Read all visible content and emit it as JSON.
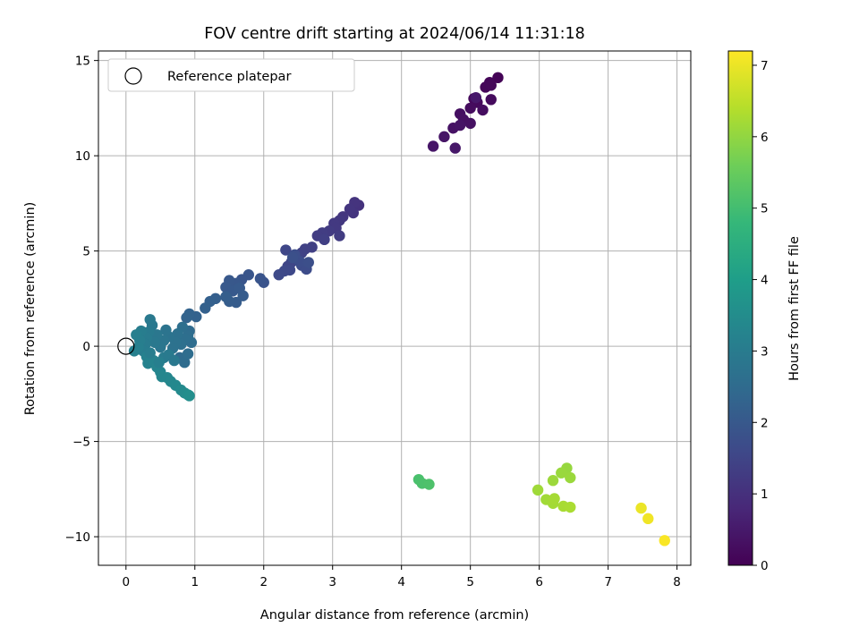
{
  "chart_data": {
    "type": "scatter",
    "title": "FOV centre drift starting at 2024/06/14 11:31:18",
    "xlabel": "Angular distance from reference (arcmin)",
    "ylabel": "Rotation from reference (arcmin)",
    "xlim": [
      -0.4,
      8.2
    ],
    "ylim": [
      -11.5,
      15.5
    ],
    "xticks": [
      0,
      1,
      2,
      3,
      4,
      5,
      6,
      7,
      8
    ],
    "yticks": [
      -10,
      -5,
      0,
      5,
      10,
      15
    ],
    "xtick_labels": [
      "0",
      "1",
      "2",
      "3",
      "4",
      "5",
      "6",
      "7",
      "8"
    ],
    "ytick_labels": [
      "−10",
      "−5",
      "0",
      "5",
      "10",
      "15"
    ],
    "grid": true,
    "legend": {
      "position": "upper-left",
      "entries": [
        "Reference platepar"
      ]
    },
    "reference": {
      "x": 0,
      "y": 0,
      "label": "Reference platepar"
    },
    "colorbar": {
      "label": "Hours from first FF file",
      "colormap": "viridis",
      "range": [
        0,
        7.2
      ],
      "ticks": [
        0,
        1,
        2,
        3,
        4,
        5,
        6,
        7
      ],
      "tick_labels": [
        "0",
        "1",
        "2",
        "3",
        "4",
        "5",
        "6",
        "7"
      ]
    },
    "colors": {
      "viridis": [
        "#440154",
        "#482878",
        "#3e4989",
        "#31688e",
        "#26828e",
        "#1f9e89",
        "#35b779",
        "#6ece58",
        "#b5de2b",
        "#fde725"
      ],
      "grid": "#b0b0b0",
      "frame": "#000000"
    },
    "points": [
      {
        "x": 5.4,
        "y": 14.1,
        "c": 0.05
      },
      {
        "x": 5.28,
        "y": 13.85,
        "c": 0.08
      },
      {
        "x": 5.22,
        "y": 13.6,
        "c": 0.1
      },
      {
        "x": 5.3,
        "y": 13.7,
        "c": 0.12
      },
      {
        "x": 5.05,
        "y": 13.0,
        "c": 0.15
      },
      {
        "x": 5.1,
        "y": 12.8,
        "c": 0.18
      },
      {
        "x": 5.3,
        "y": 12.95,
        "c": 0.2
      },
      {
        "x": 5.0,
        "y": 12.5,
        "c": 0.22
      },
      {
        "x": 5.18,
        "y": 12.4,
        "c": 0.25
      },
      {
        "x": 4.85,
        "y": 12.2,
        "c": 0.28
      },
      {
        "x": 4.9,
        "y": 11.9,
        "c": 0.3
      },
      {
        "x": 5.0,
        "y": 11.7,
        "c": 0.32
      },
      {
        "x": 4.75,
        "y": 11.45,
        "c": 0.35
      },
      {
        "x": 4.85,
        "y": 11.6,
        "c": 0.38
      },
      {
        "x": 4.62,
        "y": 11.0,
        "c": 0.4
      },
      {
        "x": 4.46,
        "y": 10.5,
        "c": 0.42
      },
      {
        "x": 4.78,
        "y": 10.4,
        "c": 0.45
      },
      {
        "x": 5.08,
        "y": 13.05,
        "c": 0.48
      },
      {
        "x": 3.38,
        "y": 7.4,
        "c": 1.05
      },
      {
        "x": 3.32,
        "y": 7.55,
        "c": 1.08
      },
      {
        "x": 3.3,
        "y": 7.0,
        "c": 1.1
      },
      {
        "x": 3.25,
        "y": 7.2,
        "c": 1.12
      },
      {
        "x": 3.15,
        "y": 6.8,
        "c": 1.15
      },
      {
        "x": 3.1,
        "y": 6.6,
        "c": 1.18
      },
      {
        "x": 3.02,
        "y": 6.45,
        "c": 1.2
      },
      {
        "x": 3.05,
        "y": 6.2,
        "c": 1.22
      },
      {
        "x": 2.95,
        "y": 6.05,
        "c": 1.25
      },
      {
        "x": 3.1,
        "y": 5.8,
        "c": 1.28
      },
      {
        "x": 2.85,
        "y": 5.95,
        "c": 1.3
      },
      {
        "x": 2.78,
        "y": 5.8,
        "c": 1.32
      },
      {
        "x": 2.88,
        "y": 5.6,
        "c": 1.35
      },
      {
        "x": 2.7,
        "y": 5.2,
        "c": 1.38
      },
      {
        "x": 2.6,
        "y": 5.1,
        "c": 1.4
      },
      {
        "x": 2.55,
        "y": 4.9,
        "c": 1.42
      },
      {
        "x": 2.5,
        "y": 4.75,
        "c": 1.45
      },
      {
        "x": 2.45,
        "y": 4.6,
        "c": 1.48
      },
      {
        "x": 2.4,
        "y": 4.4,
        "c": 1.5
      },
      {
        "x": 2.35,
        "y": 4.2,
        "c": 1.52
      },
      {
        "x": 2.32,
        "y": 5.05,
        "c": 1.55
      },
      {
        "x": 2.38,
        "y": 4.0,
        "c": 1.58
      },
      {
        "x": 2.3,
        "y": 3.95,
        "c": 1.6
      },
      {
        "x": 2.22,
        "y": 3.75,
        "c": 1.62
      },
      {
        "x": 2.55,
        "y": 4.25,
        "c": 1.65
      },
      {
        "x": 2.62,
        "y": 4.05,
        "c": 1.68
      },
      {
        "x": 2.52,
        "y": 4.45,
        "c": 1.7
      },
      {
        "x": 2.45,
        "y": 4.8,
        "c": 1.72
      },
      {
        "x": 2.65,
        "y": 4.4,
        "c": 1.75
      },
      {
        "x": 2.42,
        "y": 4.65,
        "c": 1.78
      },
      {
        "x": 2.0,
        "y": 3.35,
        "c": 1.85
      },
      {
        "x": 1.95,
        "y": 3.55,
        "c": 1.88
      },
      {
        "x": 1.78,
        "y": 3.75,
        "c": 1.9
      },
      {
        "x": 1.68,
        "y": 3.5,
        "c": 1.92
      },
      {
        "x": 1.6,
        "y": 3.3,
        "c": 1.95
      },
      {
        "x": 1.5,
        "y": 3.45,
        "c": 1.98
      },
      {
        "x": 1.45,
        "y": 3.1,
        "c": 2.0
      },
      {
        "x": 1.55,
        "y": 2.9,
        "c": 2.02
      },
      {
        "x": 1.65,
        "y": 3.05,
        "c": 2.05
      },
      {
        "x": 1.7,
        "y": 2.65,
        "c": 2.08
      },
      {
        "x": 1.6,
        "y": 2.3,
        "c": 2.1
      },
      {
        "x": 1.5,
        "y": 2.35,
        "c": 2.12
      },
      {
        "x": 1.45,
        "y": 2.6,
        "c": 2.15
      },
      {
        "x": 1.3,
        "y": 2.5,
        "c": 2.18
      },
      {
        "x": 1.22,
        "y": 2.35,
        "c": 2.2
      },
      {
        "x": 1.15,
        "y": 2.0,
        "c": 2.22
      },
      {
        "x": 1.02,
        "y": 1.55,
        "c": 2.25
      },
      {
        "x": 0.92,
        "y": 1.7,
        "c": 2.28
      },
      {
        "x": 0.88,
        "y": 1.5,
        "c": 2.3
      },
      {
        "x": 0.92,
        "y": 0.8,
        "c": 2.5
      },
      {
        "x": 0.95,
        "y": 0.2,
        "c": 2.55
      },
      {
        "x": 0.9,
        "y": 0.55,
        "c": 2.58
      },
      {
        "x": 0.82,
        "y": 1.0,
        "c": 2.6
      },
      {
        "x": 0.85,
        "y": 0.4,
        "c": 2.62
      },
      {
        "x": 0.8,
        "y": 0.1,
        "c": 2.65
      },
      {
        "x": 0.75,
        "y": 0.65,
        "c": 2.68
      },
      {
        "x": 0.72,
        "y": 0.2,
        "c": 2.7
      },
      {
        "x": 0.68,
        "y": -0.1,
        "c": 2.72
      },
      {
        "x": 0.62,
        "y": 0.5,
        "c": 2.75
      },
      {
        "x": 0.58,
        "y": 0.85,
        "c": 2.78
      },
      {
        "x": 0.55,
        "y": 0.3,
        "c": 2.8
      },
      {
        "x": 0.5,
        "y": -0.05,
        "c": 2.82
      },
      {
        "x": 0.45,
        "y": 0.6,
        "c": 2.85
      },
      {
        "x": 0.42,
        "y": 0.2,
        "c": 2.88
      },
      {
        "x": 0.38,
        "y": 1.1,
        "c": 2.9
      },
      {
        "x": 0.35,
        "y": 1.4,
        "c": 2.92
      },
      {
        "x": 0.33,
        "y": 0.75,
        "c": 2.95
      },
      {
        "x": 0.3,
        "y": 0.45,
        "c": 2.98
      },
      {
        "x": 0.28,
        "y": 0.1,
        "c": 3.0
      },
      {
        "x": 0.25,
        "y": -0.25,
        "c": 3.02
      },
      {
        "x": 0.22,
        "y": 0.8,
        "c": 3.05
      },
      {
        "x": 0.2,
        "y": 0.3,
        "c": 3.08
      },
      {
        "x": 0.18,
        "y": -0.05,
        "c": 3.1
      },
      {
        "x": 0.15,
        "y": 0.6,
        "c": 3.12
      },
      {
        "x": 0.12,
        "y": -0.25,
        "c": 3.15
      },
      {
        "x": 0.3,
        "y": -0.55,
        "c": 3.18
      },
      {
        "x": 0.32,
        "y": -0.9,
        "c": 3.2
      },
      {
        "x": 0.4,
        "y": -0.75,
        "c": 3.22
      },
      {
        "x": 0.45,
        "y": -1.1,
        "c": 3.25
      },
      {
        "x": 0.5,
        "y": -1.35,
        "c": 3.28
      },
      {
        "x": 0.52,
        "y": -1.6,
        "c": 3.3
      },
      {
        "x": 0.6,
        "y": -1.65,
        "c": 3.32
      },
      {
        "x": 0.65,
        "y": -1.85,
        "c": 3.35
      },
      {
        "x": 0.72,
        "y": -2.05,
        "c": 3.38
      },
      {
        "x": 0.8,
        "y": -2.3,
        "c": 3.42
      },
      {
        "x": 0.85,
        "y": -2.45,
        "c": 3.45
      },
      {
        "x": 0.9,
        "y": -2.55,
        "c": 3.5
      },
      {
        "x": 0.92,
        "y": -2.6,
        "c": 3.55
      },
      {
        "x": 0.78,
        "y": -0.6,
        "c": 2.5
      },
      {
        "x": 0.85,
        "y": -0.85,
        "c": 2.52
      },
      {
        "x": 0.9,
        "y": -0.4,
        "c": 2.55
      },
      {
        "x": 0.55,
        "y": -0.6,
        "c": 3.0
      },
      {
        "x": 0.62,
        "y": -0.45,
        "c": 2.95
      },
      {
        "x": 0.35,
        "y": -0.35,
        "c": 3.05
      },
      {
        "x": 0.48,
        "y": -0.85,
        "c": 3.1
      },
      {
        "x": 0.7,
        "y": -0.75,
        "c": 2.9
      },
      {
        "x": 4.25,
        "y": -7.0,
        "c": 5.1
      },
      {
        "x": 4.3,
        "y": -7.2,
        "c": 5.12
      },
      {
        "x": 4.4,
        "y": -7.25,
        "c": 5.15
      },
      {
        "x": 6.4,
        "y": -6.4,
        "c": 6.05
      },
      {
        "x": 6.32,
        "y": -6.65,
        "c": 6.08
      },
      {
        "x": 6.45,
        "y": -6.9,
        "c": 6.1
      },
      {
        "x": 6.2,
        "y": -7.05,
        "c": 6.12
      },
      {
        "x": 5.98,
        "y": -7.55,
        "c": 6.15
      },
      {
        "x": 6.1,
        "y": -8.05,
        "c": 6.18
      },
      {
        "x": 6.2,
        "y": -8.25,
        "c": 6.2
      },
      {
        "x": 6.22,
        "y": -8.0,
        "c": 6.22
      },
      {
        "x": 6.35,
        "y": -8.4,
        "c": 6.25
      },
      {
        "x": 6.45,
        "y": -8.45,
        "c": 6.28
      },
      {
        "x": 7.48,
        "y": -8.5,
        "c": 7.0
      },
      {
        "x": 7.58,
        "y": -9.05,
        "c": 7.05
      },
      {
        "x": 7.82,
        "y": -10.2,
        "c": 7.15
      }
    ]
  }
}
